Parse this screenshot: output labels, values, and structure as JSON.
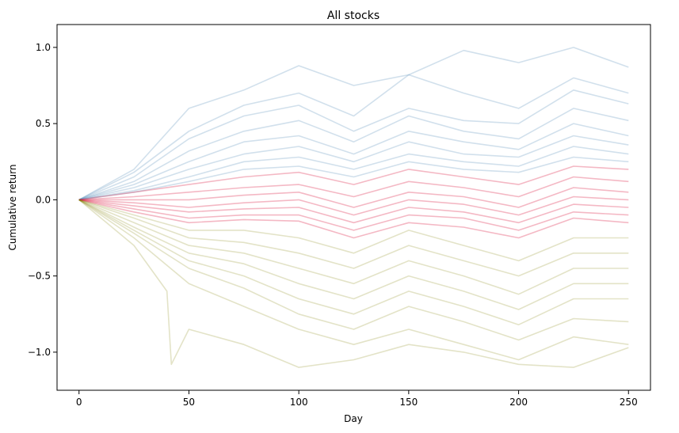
{
  "chart_data": {
    "type": "line",
    "title": "All stocks",
    "xlabel": "Day",
    "ylabel": "Cumulative return",
    "xlim": [
      -10,
      260
    ],
    "ylim": [
      -1.25,
      1.15
    ],
    "xticks": [
      0,
      50,
      100,
      150,
      200,
      250
    ],
    "xtick_labels": [
      "0",
      "50",
      "100",
      "150",
      "200",
      "250"
    ],
    "yticks": [
      -1.0,
      -0.5,
      0.0,
      0.5,
      1.0
    ],
    "ytick_labels": [
      "−1.0",
      "−0.5",
      "0.0",
      "0.5",
      "1.0"
    ],
    "grid": false,
    "legend": "none",
    "series": [
      {
        "color": "#4682b4",
        "opacity": 0.25,
        "lines": [
          {
            "x": [
              0,
              25,
              50,
              75,
              100,
              125,
              150,
              175,
              200,
              225,
              250
            ],
            "y": [
              0,
              0.2,
              0.6,
              0.72,
              0.88,
              0.75,
              0.82,
              0.98,
              0.9,
              1.0,
              0.87
            ]
          },
          {
            "x": [
              0,
              25,
              50,
              75,
              100,
              125,
              150,
              175,
              200,
              225,
              250
            ],
            "y": [
              0,
              0.18,
              0.45,
              0.62,
              0.7,
              0.55,
              0.82,
              0.7,
              0.6,
              0.8,
              0.7
            ]
          },
          {
            "x": [
              0,
              25,
              50,
              75,
              100,
              125,
              150,
              175,
              200,
              225,
              250
            ],
            "y": [
              0,
              0.15,
              0.4,
              0.55,
              0.62,
              0.45,
              0.6,
              0.52,
              0.5,
              0.72,
              0.63
            ]
          },
          {
            "x": [
              0,
              25,
              50,
              75,
              100,
              125,
              150,
              175,
              200,
              225,
              250
            ],
            "y": [
              0,
              0.12,
              0.32,
              0.45,
              0.52,
              0.38,
              0.55,
              0.45,
              0.4,
              0.6,
              0.52
            ]
          },
          {
            "x": [
              0,
              25,
              50,
              75,
              100,
              125,
              150,
              175,
              200,
              225,
              250
            ],
            "y": [
              0,
              0.1,
              0.25,
              0.38,
              0.42,
              0.3,
              0.45,
              0.38,
              0.33,
              0.5,
              0.42
            ]
          },
          {
            "x": [
              0,
              25,
              50,
              75,
              100,
              125,
              150,
              175,
              200,
              225,
              250
            ],
            "y": [
              0,
              0.08,
              0.2,
              0.3,
              0.35,
              0.25,
              0.38,
              0.3,
              0.28,
              0.42,
              0.36
            ]
          },
          {
            "x": [
              0,
              25,
              50,
              75,
              100,
              125,
              150,
              175,
              200,
              225,
              250
            ],
            "y": [
              0,
              0.06,
              0.15,
              0.25,
              0.28,
              0.2,
              0.3,
              0.25,
              0.22,
              0.35,
              0.3
            ]
          },
          {
            "x": [
              0,
              25,
              50,
              75,
              100,
              125,
              150,
              175,
              200,
              225,
              250
            ],
            "y": [
              0,
              0.05,
              0.12,
              0.2,
              0.22,
              0.15,
              0.25,
              0.2,
              0.18,
              0.28,
              0.25
            ]
          }
        ]
      },
      {
        "color": "#dc143c",
        "opacity": 0.3,
        "lines": [
          {
            "x": [
              0,
              25,
              50,
              75,
              100,
              125,
              150,
              175,
              200,
              225,
              250
            ],
            "y": [
              0,
              0.05,
              0.1,
              0.15,
              0.18,
              0.1,
              0.2,
              0.15,
              0.1,
              0.22,
              0.2
            ]
          },
          {
            "x": [
              0,
              25,
              50,
              75,
              100,
              125,
              150,
              175,
              200,
              225,
              250
            ],
            "y": [
              0,
              0.02,
              0.05,
              0.08,
              0.1,
              0.02,
              0.12,
              0.08,
              0.02,
              0.15,
              0.12
            ]
          },
          {
            "x": [
              0,
              25,
              50,
              75,
              100,
              125,
              150,
              175,
              200,
              225,
              250
            ],
            "y": [
              0,
              0.0,
              0.0,
              0.03,
              0.05,
              -0.05,
              0.05,
              0.02,
              -0.05,
              0.08,
              0.05
            ]
          },
          {
            "x": [
              0,
              25,
              50,
              75,
              100,
              125,
              150,
              175,
              200,
              225,
              250
            ],
            "y": [
              0,
              -0.02,
              -0.05,
              -0.02,
              0.0,
              -0.1,
              0.0,
              -0.03,
              -0.1,
              0.02,
              0.0
            ]
          },
          {
            "x": [
              0,
              25,
              50,
              75,
              100,
              125,
              150,
              175,
              200,
              225,
              250
            ],
            "y": [
              0,
              -0.04,
              -0.08,
              -0.06,
              -0.05,
              -0.15,
              -0.05,
              -0.08,
              -0.15,
              -0.03,
              -0.05
            ]
          },
          {
            "x": [
              0,
              25,
              50,
              75,
              100,
              125,
              150,
              175,
              200,
              225,
              250
            ],
            "y": [
              0,
              -0.06,
              -0.12,
              -0.1,
              -0.1,
              -0.2,
              -0.1,
              -0.12,
              -0.2,
              -0.08,
              -0.1
            ]
          },
          {
            "x": [
              0,
              25,
              50,
              75,
              100,
              125,
              150,
              175,
              200,
              225,
              250
            ],
            "y": [
              0,
              -0.08,
              -0.15,
              -0.13,
              -0.14,
              -0.25,
              -0.15,
              -0.18,
              -0.25,
              -0.12,
              -0.15
            ]
          }
        ]
      },
      {
        "color": "#808000",
        "opacity": 0.22,
        "lines": [
          {
            "x": [
              0,
              25,
              50,
              75,
              100,
              125,
              150,
              175,
              200,
              225,
              250
            ],
            "y": [
              0,
              -0.1,
              -0.2,
              -0.2,
              -0.25,
              -0.35,
              -0.2,
              -0.3,
              -0.4,
              -0.25,
              -0.25
            ]
          },
          {
            "x": [
              0,
              25,
              50,
              75,
              100,
              125,
              150,
              175,
              200,
              225,
              250
            ],
            "y": [
              0,
              -0.12,
              -0.25,
              -0.28,
              -0.35,
              -0.45,
              -0.3,
              -0.4,
              -0.5,
              -0.35,
              -0.35
            ]
          },
          {
            "x": [
              0,
              25,
              50,
              75,
              100,
              125,
              150,
              175,
              200,
              225,
              250
            ],
            "y": [
              0,
              -0.15,
              -0.3,
              -0.35,
              -0.45,
              -0.55,
              -0.4,
              -0.5,
              -0.62,
              -0.45,
              -0.45
            ]
          },
          {
            "x": [
              0,
              25,
              50,
              75,
              100,
              125,
              150,
              175,
              200,
              225,
              250
            ],
            "y": [
              0,
              -0.18,
              -0.35,
              -0.42,
              -0.55,
              -0.65,
              -0.5,
              -0.6,
              -0.72,
              -0.55,
              -0.55
            ]
          },
          {
            "x": [
              0,
              25,
              50,
              75,
              100,
              125,
              150,
              175,
              200,
              225,
              250
            ],
            "y": [
              0,
              -0.2,
              -0.4,
              -0.5,
              -0.65,
              -0.75,
              -0.6,
              -0.7,
              -0.82,
              -0.65,
              -0.65
            ]
          },
          {
            "x": [
              0,
              25,
              50,
              75,
              100,
              125,
              150,
              175,
              200,
              225,
              250
            ],
            "y": [
              0,
              -0.22,
              -0.45,
              -0.58,
              -0.75,
              -0.85,
              -0.7,
              -0.8,
              -0.92,
              -0.78,
              -0.8
            ]
          },
          {
            "x": [
              0,
              25,
              50,
              75,
              100,
              125,
              150,
              175,
              200,
              225,
              250
            ],
            "y": [
              0,
              -0.25,
              -0.55,
              -0.7,
              -0.85,
              -0.95,
              -0.85,
              -0.95,
              -1.05,
              -0.9,
              -0.95
            ]
          },
          {
            "x": [
              0,
              25,
              40,
              42,
              50,
              75,
              100,
              125,
              150,
              175,
              200,
              225,
              250
            ],
            "y": [
              0,
              -0.3,
              -0.6,
              -1.08,
              -0.85,
              -0.95,
              -1.1,
              -1.05,
              -0.95,
              -1.0,
              -1.08,
              -1.1,
              -0.97
            ]
          }
        ]
      }
    ]
  }
}
